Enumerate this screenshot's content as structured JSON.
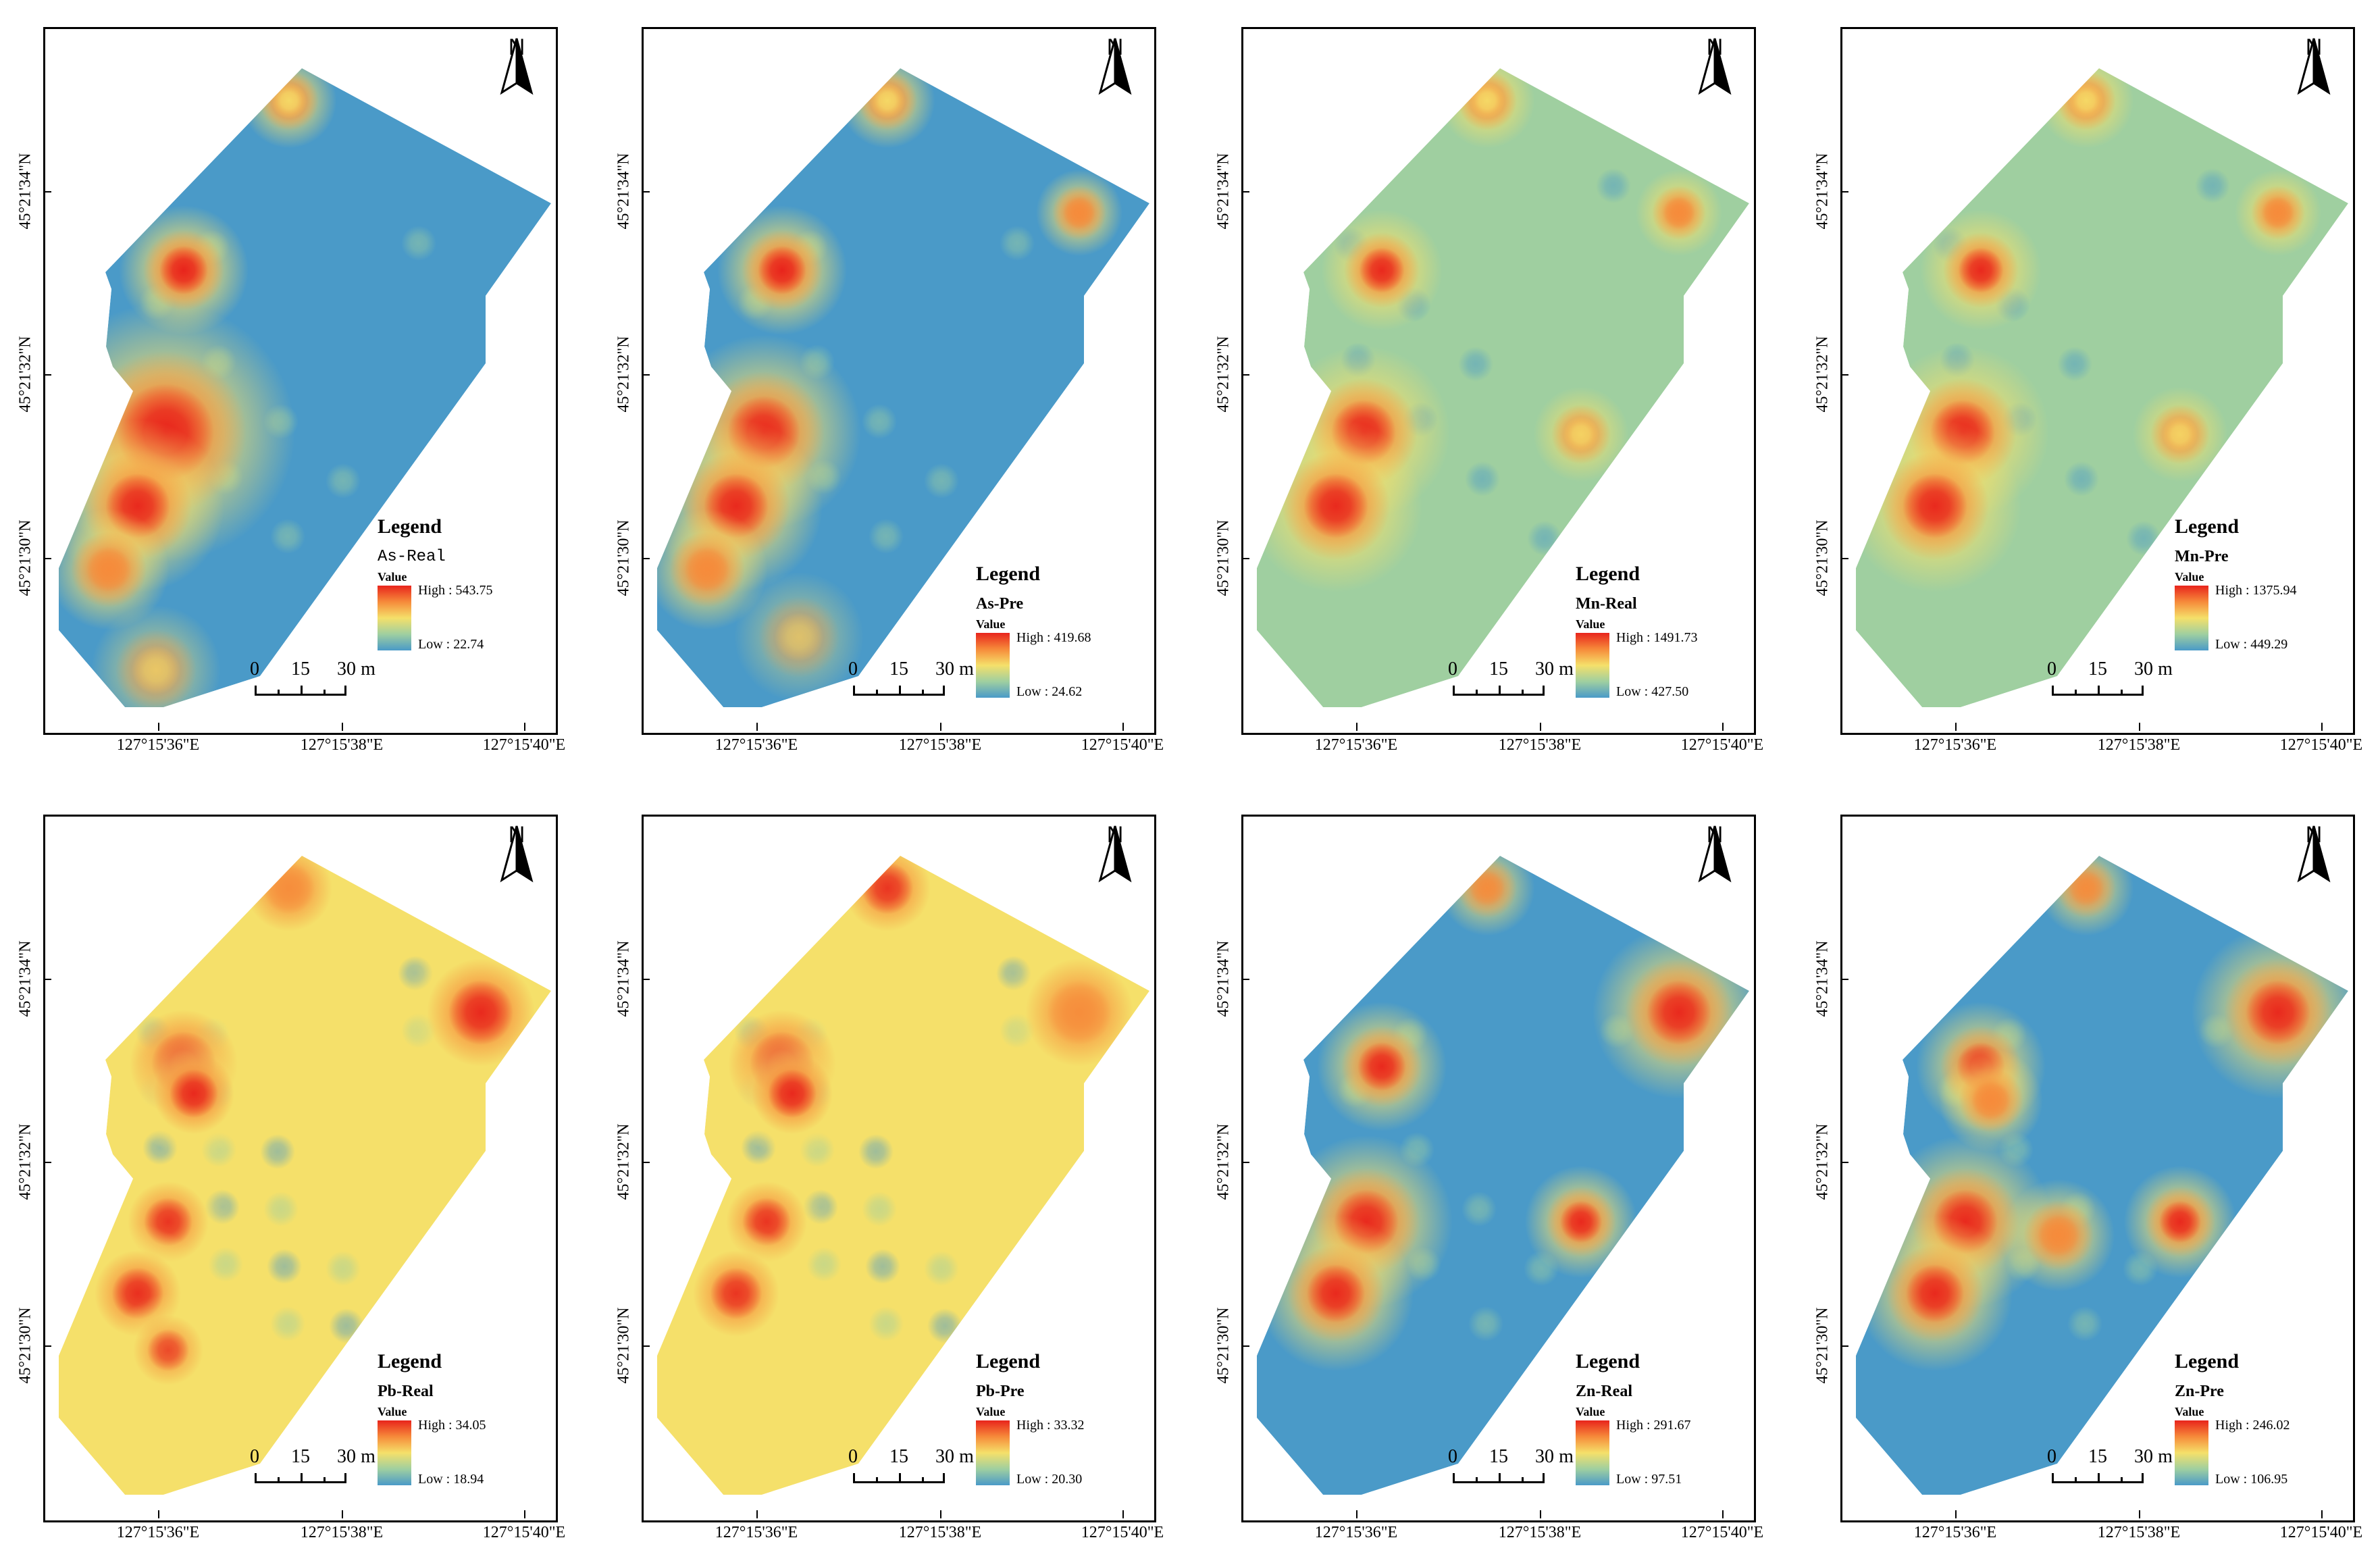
{
  "map": {
    "north_label": "N",
    "legend_title": "Legend",
    "value_label": "Value",
    "scale": {
      "labels": [
        "0",
        "15",
        "30"
      ],
      "unit": "m"
    },
    "x_ticks": [
      "127°15'36\"E",
      "127°15'38\"E",
      "127°15'40\"E"
    ],
    "y_ticks": [
      "45°21'34\"N",
      "45°21'32\"N",
      "45°21'30\"N"
    ],
    "colors": {
      "high": "#e8241c",
      "mid_high": "#f68a3a",
      "mid": "#f5e06a",
      "mid_low": "#9fcfa0",
      "low": "#4a9ac8"
    }
  },
  "panels": [
    {
      "name": "As-Real",
      "high": "High : 543.75",
      "low": "Low : 22.74"
    },
    {
      "name": "As-Pre",
      "high": "High : 419.68",
      "low": "Low : 24.62"
    },
    {
      "name": "Mn-Real",
      "high": "High : 1491.73",
      "low": "Low : 427.50"
    },
    {
      "name": "Mn-Pre",
      "high": "High : 1375.94",
      "low": "Low : 449.29"
    },
    {
      "name": "Pb-Real",
      "high": "High : 34.05",
      "low": "Low : 18.94"
    },
    {
      "name": "Pb-Pre",
      "high": "High : 33.32",
      "low": "Low : 20.30"
    },
    {
      "name": "Zn-Real",
      "high": "High : 291.67",
      "low": "Low : 97.51"
    },
    {
      "name": "Zn-Pre",
      "high": "High : 246.02",
      "low": "Low : 106.95"
    }
  ]
}
